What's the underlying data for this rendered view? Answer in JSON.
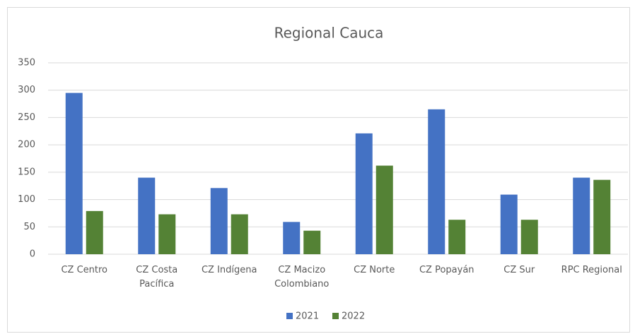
{
  "chart_data": {
    "type": "bar",
    "title": "Regional Cauca",
    "categories": [
      "CZ Centro",
      "CZ Costa Pacífica",
      "CZ Indígena",
      "CZ Macizo Colombiano",
      "CZ Norte",
      "CZ Popayán",
      "CZ Sur",
      "RPC Regional"
    ],
    "series": [
      {
        "name": "2021",
        "color": "#4472c4",
        "values": [
          295,
          140,
          121,
          59,
          221,
          265,
          109,
          140
        ]
      },
      {
        "name": "2022",
        "color": "#548235",
        "values": [
          79,
          73,
          73,
          43,
          162,
          63,
          63,
          136
        ]
      }
    ],
    "ylim": [
      0,
      350
    ],
    "yticks": [
      0,
      50,
      100,
      150,
      200,
      250,
      300,
      350
    ],
    "grid": true,
    "legend": "bottom"
  }
}
